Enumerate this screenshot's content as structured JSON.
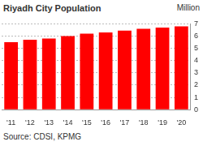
{
  "chart_data": {
    "type": "bar",
    "title": "Riyadh City Population",
    "y_label": "Million",
    "source": "Source: CDSI, KPMG",
    "categories": [
      "'11",
      "'12",
      "'13",
      "'14",
      "'15",
      "'16",
      "'17",
      "'18",
      "'19",
      "'20"
    ],
    "values": [
      5.5,
      5.7,
      5.8,
      6.0,
      6.2,
      6.3,
      6.45,
      6.6,
      6.7,
      6.8
    ],
    "color": "#ff0000",
    "ylim": [
      0,
      7
    ],
    "yticks": [
      0,
      1,
      2,
      3,
      4,
      5,
      6,
      7
    ],
    "grid": true
  }
}
